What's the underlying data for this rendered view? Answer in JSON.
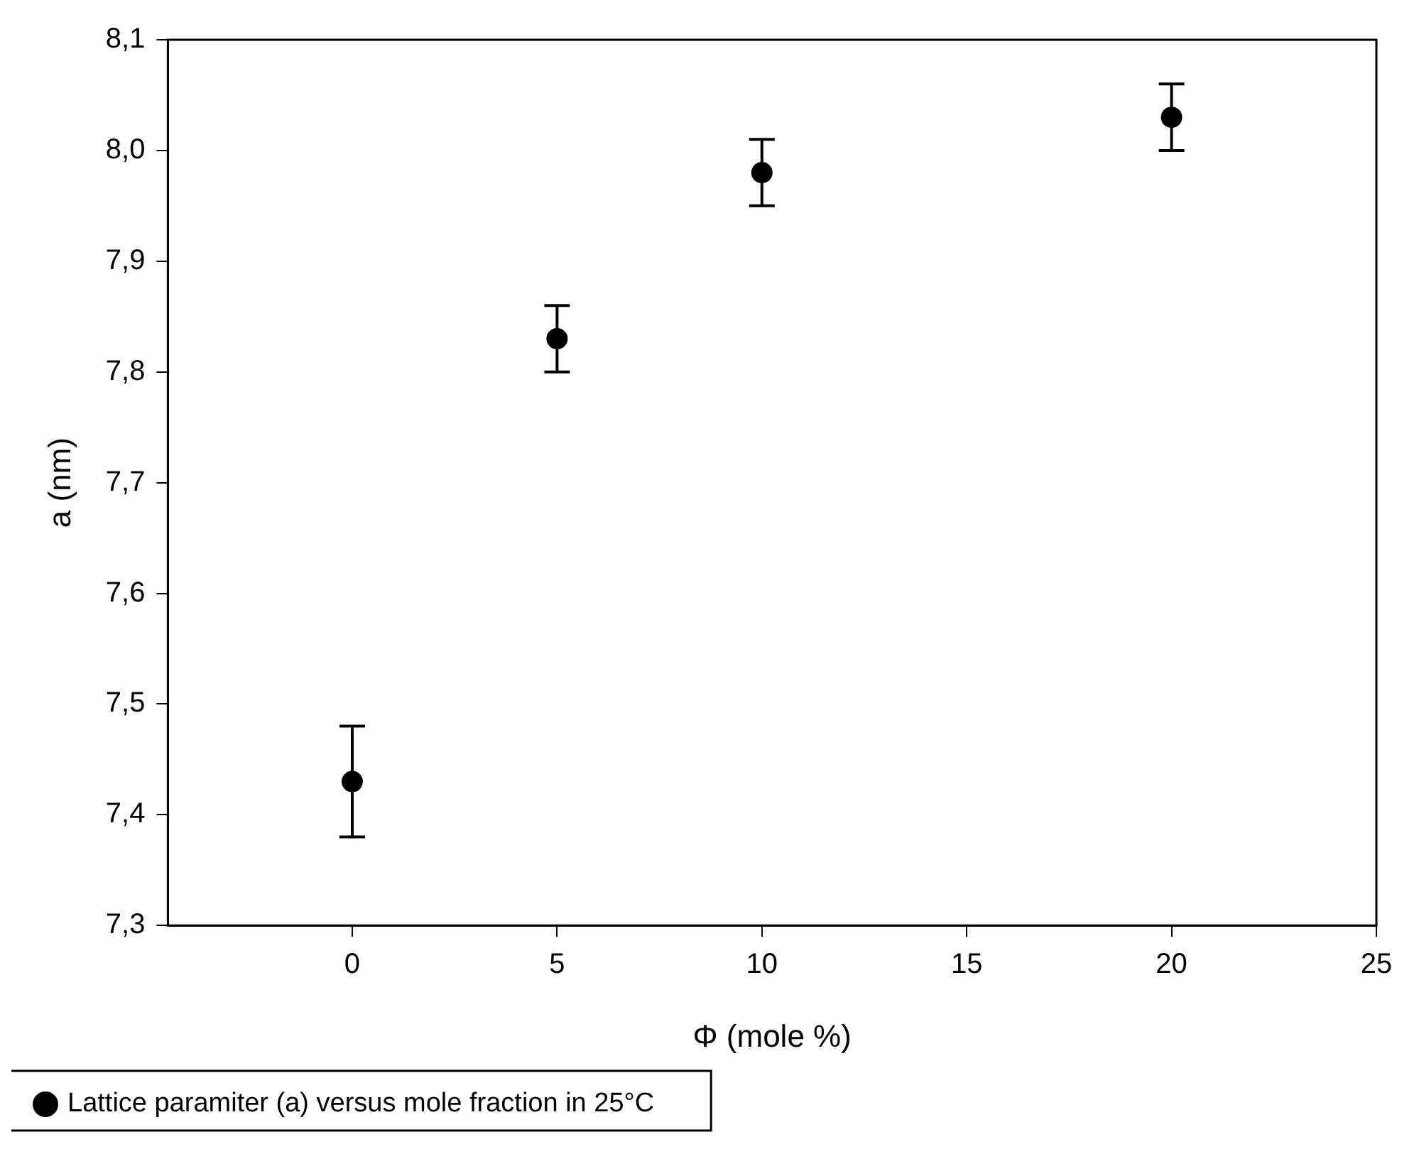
{
  "chart_data": {
    "type": "scatter",
    "xlabel": "Φ (mole %)",
    "ylabel": "a (nm)",
    "x": [
      0,
      5,
      10,
      20
    ],
    "series": [
      {
        "name": "Lattice paramiter (a) versus mole fraction in 25°C",
        "color": "#000000",
        "values": [
          7.43,
          7.83,
          7.98,
          8.03
        ],
        "errors": [
          0.05,
          0.03,
          0.03,
          0.03
        ]
      }
    ],
    "xlim": [
      -4.5,
      25
    ],
    "xticks": [
      0,
      5,
      10,
      15,
      20,
      25
    ],
    "ylim": [
      7.3,
      8.1
    ],
    "yticks": [
      {
        "value": 7.3,
        "label": "7,3"
      },
      {
        "value": 7.4,
        "label": "7,4"
      },
      {
        "value": 7.5,
        "label": "7,5"
      },
      {
        "value": 7.6,
        "label": "7,6"
      },
      {
        "value": 7.7,
        "label": "7,7"
      },
      {
        "value": 7.8,
        "label": "7,8"
      },
      {
        "value": 7.9,
        "label": "7,9"
      },
      {
        "value": 8.0,
        "label": "8,0"
      },
      {
        "value": 8.1,
        "label": "8,1"
      }
    ],
    "grid": false,
    "legend": "bottom",
    "marker": "circle"
  }
}
